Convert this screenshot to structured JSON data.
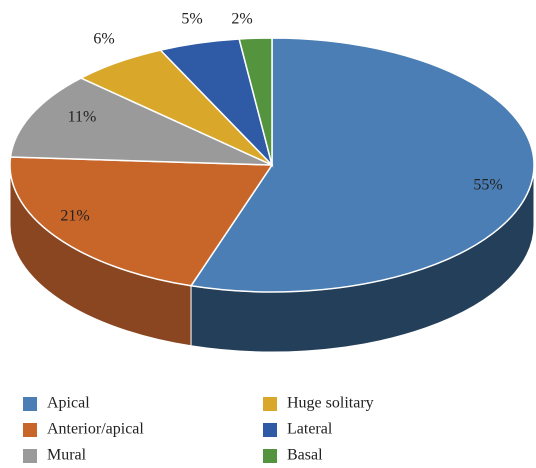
{
  "chart_data": {
    "type": "pie",
    "three_d": true,
    "categories": [
      "Apical",
      "Anterior/apical",
      "Mural",
      "Huge solitary",
      "Lateral",
      "Basal"
    ],
    "values": [
      55,
      21,
      11,
      6,
      5,
      2
    ],
    "value_labels": [
      "55%",
      "21%",
      "11%",
      "6%",
      "5%",
      "2%"
    ],
    "colors": [
      "#4a7eb4",
      "#c8662a",
      "#9a9a9a",
      "#d9a82a",
      "#2f5aa6",
      "#55943e"
    ],
    "side_colors": [
      "#243f5a",
      "#8a4620",
      "#6a6a6a",
      "#9a7620",
      "#1f3c70",
      "#3a6a2a"
    ],
    "legend": "bottom"
  }
}
